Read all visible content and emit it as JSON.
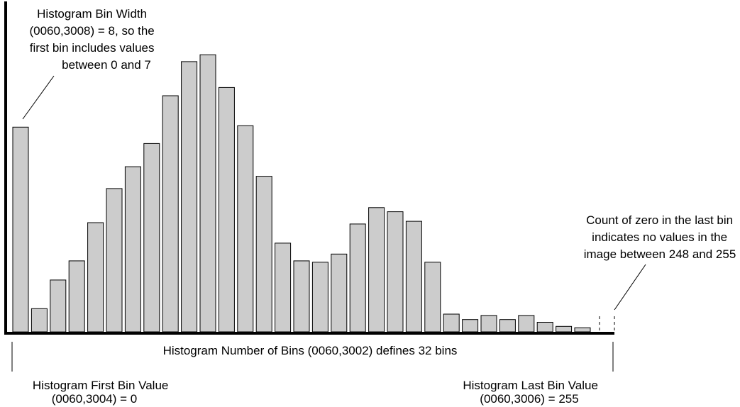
{
  "annotations": {
    "bin_width": {
      "lines": [
        "Histogram Bin Width",
        "(0060,3008)  = 8, so the",
        "first bin includes values",
        "between 0 and 7"
      ]
    },
    "last_bin_note": {
      "lines": [
        "Count of zero in the last bin",
        "indicates no values in the",
        "image between 248 and 255"
      ]
    },
    "number_of_bins": "Histogram Number of Bins (0060,3002) defines 32 bins",
    "first_bin_value": {
      "lines": [
        "Histogram First Bin Value",
        "(0060,3004)  = 0"
      ]
    },
    "last_bin_value": {
      "lines": [
        "Histogram Last Bin Value",
        "(0060,3006)  = 255"
      ]
    }
  },
  "colors": {
    "bar_fill": "#cccccc",
    "bar_stroke": "#000000",
    "axis": "#000000"
  },
  "chart_data": {
    "type": "bar",
    "bin_count": 32,
    "bin_width": 8,
    "first_bin_value": 0,
    "last_bin_value": 255,
    "ylim": [
      0,
      100
    ],
    "values": [
      75.0,
      8.5,
      19.0,
      26.0,
      40.0,
      52.5,
      60.5,
      69.0,
      86.5,
      99.0,
      101.5,
      89.5,
      75.5,
      57.0,
      32.5,
      26.0,
      25.5,
      28.5,
      39.5,
      45.5,
      44.0,
      40.5,
      25.5,
      6.5,
      4.5,
      6.0,
      4.5,
      6.0,
      3.5,
      2.0,
      1.5,
      0
    ]
  }
}
